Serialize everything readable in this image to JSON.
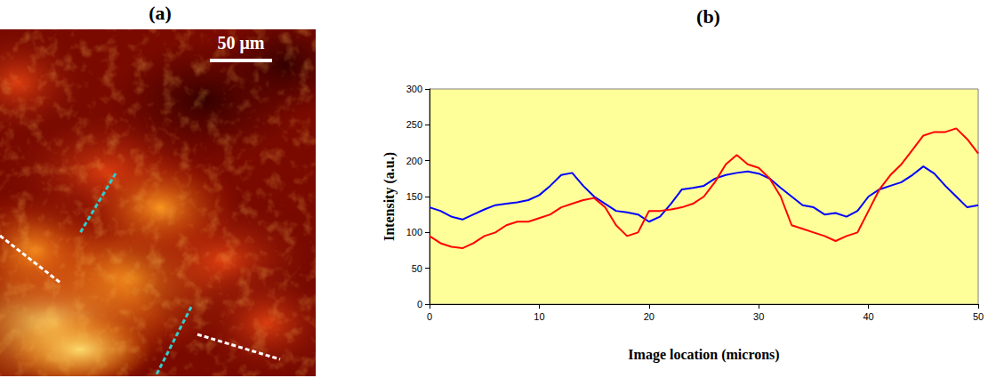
{
  "image_panel": {
    "title": "(a)",
    "scale_bar": "50 μm"
  },
  "chart_data": {
    "type": "line",
    "title": "(b)",
    "x_label": "Image location (microns)",
    "y_label": "Intensity (a.u.)",
    "x": [
      0,
      1,
      2,
      3,
      4,
      5,
      6,
      7,
      8,
      9,
      10,
      11,
      12,
      13,
      14,
      15,
      16,
      17,
      18,
      19,
      20,
      21,
      22,
      23,
      24,
      25,
      26,
      27,
      28,
      29,
      30,
      31,
      32,
      33,
      34,
      35,
      36,
      37,
      38,
      39,
      40,
      41,
      42,
      43,
      44,
      45,
      46,
      47,
      48,
      49,
      50
    ],
    "series": [
      {
        "color": "#0000ff",
        "values": [
          135,
          130,
          122,
          118,
          125,
          132,
          138,
          140,
          142,
          145,
          152,
          165,
          180,
          183,
          165,
          150,
          140,
          130,
          128,
          125,
          115,
          122,
          140,
          160,
          162,
          165,
          175,
          180,
          183,
          185,
          182,
          175,
          162,
          150,
          138,
          135,
          125,
          127,
          122,
          130,
          150,
          160,
          165,
          170,
          180,
          192,
          182,
          165,
          150,
          135,
          138
        ]
      },
      {
        "color": "#ff0000",
        "values": [
          95,
          85,
          80,
          78,
          85,
          95,
          100,
          110,
          115,
          115,
          120,
          125,
          135,
          140,
          145,
          148,
          135,
          110,
          95,
          100,
          130,
          130,
          132,
          135,
          140,
          150,
          170,
          195,
          208,
          195,
          190,
          175,
          150,
          110,
          105,
          100,
          95,
          88,
          95,
          100,
          130,
          160,
          180,
          195,
          215,
          235,
          240,
          240,
          245,
          230,
          210
        ]
      }
    ],
    "xlim": [
      0,
      50
    ],
    "ylim": [
      0,
      300
    ],
    "xticks": [
      0,
      10,
      20,
      30,
      40,
      50
    ],
    "yticks": [
      0,
      50,
      100,
      150,
      200,
      250,
      300
    ],
    "grid": false
  }
}
